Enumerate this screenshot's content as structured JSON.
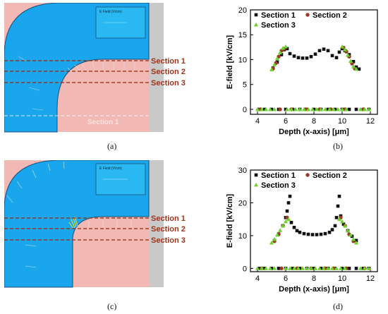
{
  "panels": {
    "a": {
      "label": "(a)",
      "sections": [
        "Section 1",
        "Section 2",
        "Section 3"
      ],
      "ghost_label": "Section 1",
      "legend_title": "E Field (V/cm)"
    },
    "c": {
      "label": "(c)",
      "sections": [
        "Section 1",
        "Section 2",
        "Section 3"
      ],
      "legend_title": "E Field (V/cm)"
    },
    "b": {
      "label": "(b)"
    },
    "d": {
      "label": "(d)"
    }
  },
  "colors": {
    "sim_pink": "#f2b8b3",
    "sim_blue": "#1aa6ec",
    "sim_grey": "#c9c9c9",
    "section_line": "#8b2a10",
    "section_text": "#a0341a",
    "series1": "#111111",
    "series2": "#9b3b22",
    "series3": "#6bd12c"
  },
  "chart_data": [
    {
      "type": "scatter",
      "xlabel": "Depth (x-axis) [μm]",
      "ylabel": "E-field [kV/cm]",
      "xlim": [
        3.5,
        12.5
      ],
      "ylim": [
        -1,
        20
      ],
      "xticks": [
        4,
        6,
        8,
        10,
        12
      ],
      "yticks": [
        0,
        5,
        10,
        15,
        20
      ],
      "legend": "top",
      "series": [
        {
          "name": "Section 1",
          "x": [
            5.1,
            5.4,
            5.7,
            5.9,
            6.1,
            6.3,
            6.6,
            6.9,
            7.2,
            7.5,
            7.8,
            8.1,
            8.4,
            8.7,
            9.0,
            9.3,
            9.6,
            9.8,
            10.0,
            10.2,
            10.5,
            10.8,
            11.0,
            11.2,
            4.1,
            4.5,
            5.0,
            5.5,
            6.0,
            6.5,
            7.0,
            7.5,
            8.0,
            8.5,
            9.0,
            9.5,
            10.0,
            10.5,
            11.0,
            11.5,
            11.9
          ],
          "y": [
            8.3,
            9.5,
            11.0,
            12.0,
            12.2,
            11.2,
            10.7,
            10.4,
            10.3,
            10.3,
            10.6,
            11.1,
            11.8,
            12.1,
            11.8,
            10.8,
            10.4,
            11.5,
            12.2,
            11.8,
            11.0,
            9.6,
            8.5,
            8.1,
            0,
            0,
            0,
            0,
            0,
            0,
            0,
            0,
            0,
            0,
            0,
            0,
            0,
            0,
            0,
            0,
            0
          ]
        },
        {
          "name": "Section 2",
          "x": [
            5.1,
            5.3,
            5.5,
            5.7,
            5.9,
            10.1,
            10.3,
            10.5,
            10.7,
            10.9,
            4.2,
            5.6,
            6.4,
            7.4,
            8.4,
            9.2,
            10.2,
            11.5
          ],
          "y": [
            8.2,
            9.3,
            10.6,
            11.8,
            12.2,
            12.4,
            11.6,
            10.6,
            9.2,
            8.2,
            0,
            0,
            0,
            0,
            0,
            0,
            0,
            0
          ]
        },
        {
          "name": "Section 3",
          "x": [
            5.0,
            5.2,
            5.4,
            5.6,
            5.8,
            6.0,
            10.0,
            10.2,
            10.4,
            10.6,
            10.8,
            11.0,
            4.0,
            4.3,
            4.6,
            4.9,
            5.2,
            6.1,
            6.4,
            6.7,
            7.0,
            7.3,
            7.6,
            7.9,
            8.2,
            8.5,
            8.8,
            9.1,
            9.4,
            9.7,
            10.0,
            10.3,
            11.3,
            11.6,
            11.9
          ],
          "y": [
            8.0,
            9.0,
            10.2,
            11.4,
            12.3,
            12.6,
            12.6,
            12.0,
            10.9,
            9.7,
            8.6,
            8.1,
            0,
            0,
            0,
            0,
            0,
            0,
            0,
            0,
            0,
            0,
            0,
            0,
            0,
            0,
            0,
            0,
            0,
            0,
            0,
            0,
            0,
            0,
            0
          ]
        }
      ]
    },
    {
      "type": "scatter",
      "xlabel": "Depth (x-axis) [μm]",
      "ylabel": "E-field [kV/cm]",
      "xlim": [
        3.5,
        12.5
      ],
      "ylim": [
        -1,
        30
      ],
      "xticks": [
        4,
        6,
        8,
        10,
        12
      ],
      "yticks": [
        0,
        10,
        20,
        30
      ],
      "legend": "top",
      "series": [
        {
          "name": "Section 1",
          "x": [
            5.2,
            5.5,
            5.8,
            6.0,
            6.1,
            6.2,
            6.3,
            6.4,
            6.6,
            6.8,
            7.0,
            7.3,
            7.6,
            7.9,
            8.2,
            8.5,
            8.8,
            9.1,
            9.3,
            9.5,
            9.6,
            9.7,
            9.8,
            9.9,
            10.1,
            10.4,
            10.7,
            11.0,
            4.1,
            4.5,
            5.0,
            5.5,
            6.0,
            6.5,
            7.0,
            7.5,
            8.0,
            8.5,
            9.0,
            9.5,
            10.0,
            10.5,
            11.0,
            11.5,
            11.9
          ],
          "y": [
            8.5,
            10.5,
            13.0,
            15.5,
            17.5,
            20.0,
            22.0,
            14.0,
            12.5,
            11.5,
            11.0,
            10.6,
            10.4,
            10.3,
            10.3,
            10.4,
            10.6,
            11.0,
            11.8,
            13.0,
            15.5,
            19.0,
            22.0,
            16.0,
            13.5,
            11.5,
            9.8,
            8.5,
            0,
            0,
            0,
            0,
            0,
            0,
            0,
            0,
            0,
            0,
            0,
            0,
            0,
            0,
            0,
            0,
            0
          ]
        },
        {
          "name": "Section 2",
          "x": [
            5.2,
            5.5,
            5.8,
            6.1,
            9.9,
            10.2,
            10.5,
            10.8,
            4.3,
            5.7,
            6.8,
            7.8,
            8.8,
            9.4,
            10.3,
            11.6
          ],
          "y": [
            8.3,
            10.4,
            13.0,
            15.5,
            15.5,
            13.0,
            10.4,
            8.3,
            0,
            0,
            0,
            0,
            0,
            0,
            0,
            0
          ]
        },
        {
          "name": "Section 3",
          "x": [
            5.0,
            5.2,
            5.4,
            5.6,
            5.8,
            6.0,
            6.2,
            9.8,
            10.0,
            10.2,
            10.4,
            10.6,
            10.8,
            11.0,
            4.0,
            4.3,
            4.6,
            4.9,
            5.2,
            6.0,
            6.3,
            6.6,
            6.9,
            7.2,
            7.5,
            7.8,
            8.1,
            8.4,
            8.7,
            9.0,
            9.3,
            9.6,
            9.9,
            10.2,
            11.3,
            11.6,
            11.9
          ],
          "y": [
            7.8,
            8.9,
            10.2,
            11.6,
            13.0,
            14.3,
            15.0,
            15.0,
            14.3,
            13.0,
            11.6,
            10.2,
            8.9,
            7.8,
            0,
            0,
            0,
            0,
            0,
            0,
            0,
            0,
            0,
            0,
            0,
            0,
            0,
            0,
            0,
            0,
            0,
            0,
            0,
            0,
            0,
            0,
            0
          ]
        }
      ]
    }
  ]
}
